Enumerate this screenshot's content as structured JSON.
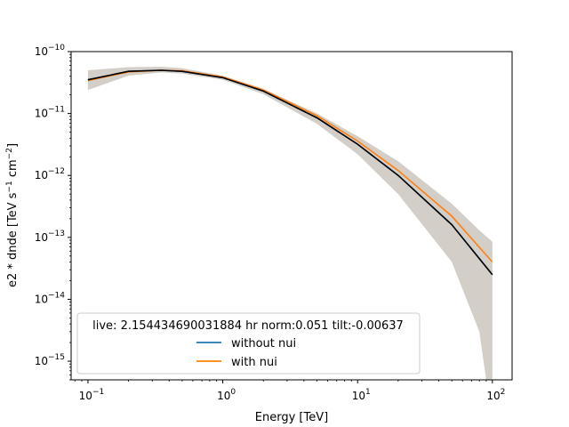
{
  "chart_data": {
    "type": "line",
    "xlabel": "Energy [TeV]",
    "ylabel_prefix": "e2 * dnde [TeV s",
    "ylabel_sup1": "−1",
    "ylabel_mid": " cm",
    "ylabel_sup2": "−2",
    "ylabel_suffix": "]",
    "x_scale": "log",
    "y_scale": "log",
    "xlim": [
      0.075,
      140
    ],
    "ylim": [
      5e-16,
      1e-10
    ],
    "x_ticks": [
      {
        "value": 0.1,
        "base": "10",
        "exp": "−1"
      },
      {
        "value": 1,
        "base": "10",
        "exp": "0"
      },
      {
        "value": 10,
        "base": "10",
        "exp": "1"
      },
      {
        "value": 100,
        "base": "10",
        "exp": "2"
      }
    ],
    "y_ticks": [
      {
        "value": 1e-15,
        "base": "10",
        "exp": "−15"
      },
      {
        "value": 1e-14,
        "base": "10",
        "exp": "−14"
      },
      {
        "value": 1e-13,
        "base": "10",
        "exp": "−13"
      },
      {
        "value": 1e-12,
        "base": "10",
        "exp": "−12"
      },
      {
        "value": 1e-11,
        "base": "10",
        "exp": "−11"
      },
      {
        "value": 1e-10,
        "base": "10",
        "exp": "−10"
      }
    ],
    "legend_title": "live: 2.154434690031884 hr norm:0.051 tilt:-0.00637",
    "legend_position": "lower-left",
    "series": [
      {
        "name": "without nui",
        "color": "#1f77b4",
        "x": [
          0.1,
          0.2,
          0.35,
          0.5,
          1,
          2,
          5,
          10,
          20,
          50,
          100
        ],
        "y": [
          3.5e-11,
          4.8e-11,
          5e-11,
          4.8e-11,
          3.8e-11,
          2.3e-11,
          8.5e-12,
          3.2e-12,
          1e-12,
          1.6e-13,
          2.5e-14
        ]
      },
      {
        "name": "with nui",
        "color": "#ff7f0e",
        "x": [
          0.1,
          0.2,
          0.35,
          0.5,
          1,
          2,
          5,
          10,
          20,
          50,
          100
        ],
        "y": [
          3.4e-11,
          4.7e-11,
          5e-11,
          4.9e-11,
          3.9e-11,
          2.4e-11,
          9.2e-12,
          3.6e-12,
          1.2e-12,
          2.2e-13,
          4e-14
        ]
      }
    ],
    "reference_line": {
      "color": "#000000",
      "x": [
        0.1,
        0.2,
        0.35,
        0.5,
        1,
        2,
        5,
        10,
        20,
        50,
        100
      ],
      "y": [
        3.5e-11,
        4.8e-11,
        5e-11,
        4.8e-11,
        3.8e-11,
        2.3e-11,
        8.5e-12,
        3.2e-12,
        1e-12,
        1.6e-13,
        2.5e-14
      ]
    },
    "error_band": {
      "color": "#d3cfc8",
      "x": [
        0.1,
        0.2,
        0.35,
        0.5,
        1,
        2,
        5,
        10,
        20,
        50,
        80,
        100
      ],
      "upper": [
        5e-11,
        5.6e-11,
        5.7e-11,
        5.4e-11,
        4.1e-11,
        2.5e-11,
        1e-11,
        4.3e-12,
        1.7e-12,
        3.5e-13,
        1.3e-13,
        8.5e-14
      ],
      "lower": [
        2.4e-11,
        4.1e-11,
        4.6e-11,
        4.4e-11,
        3.5e-11,
        2.05e-11,
        6.8e-12,
        2.2e-12,
        5e-13,
        4e-14,
        3e-15,
        1e-16
      ]
    }
  }
}
